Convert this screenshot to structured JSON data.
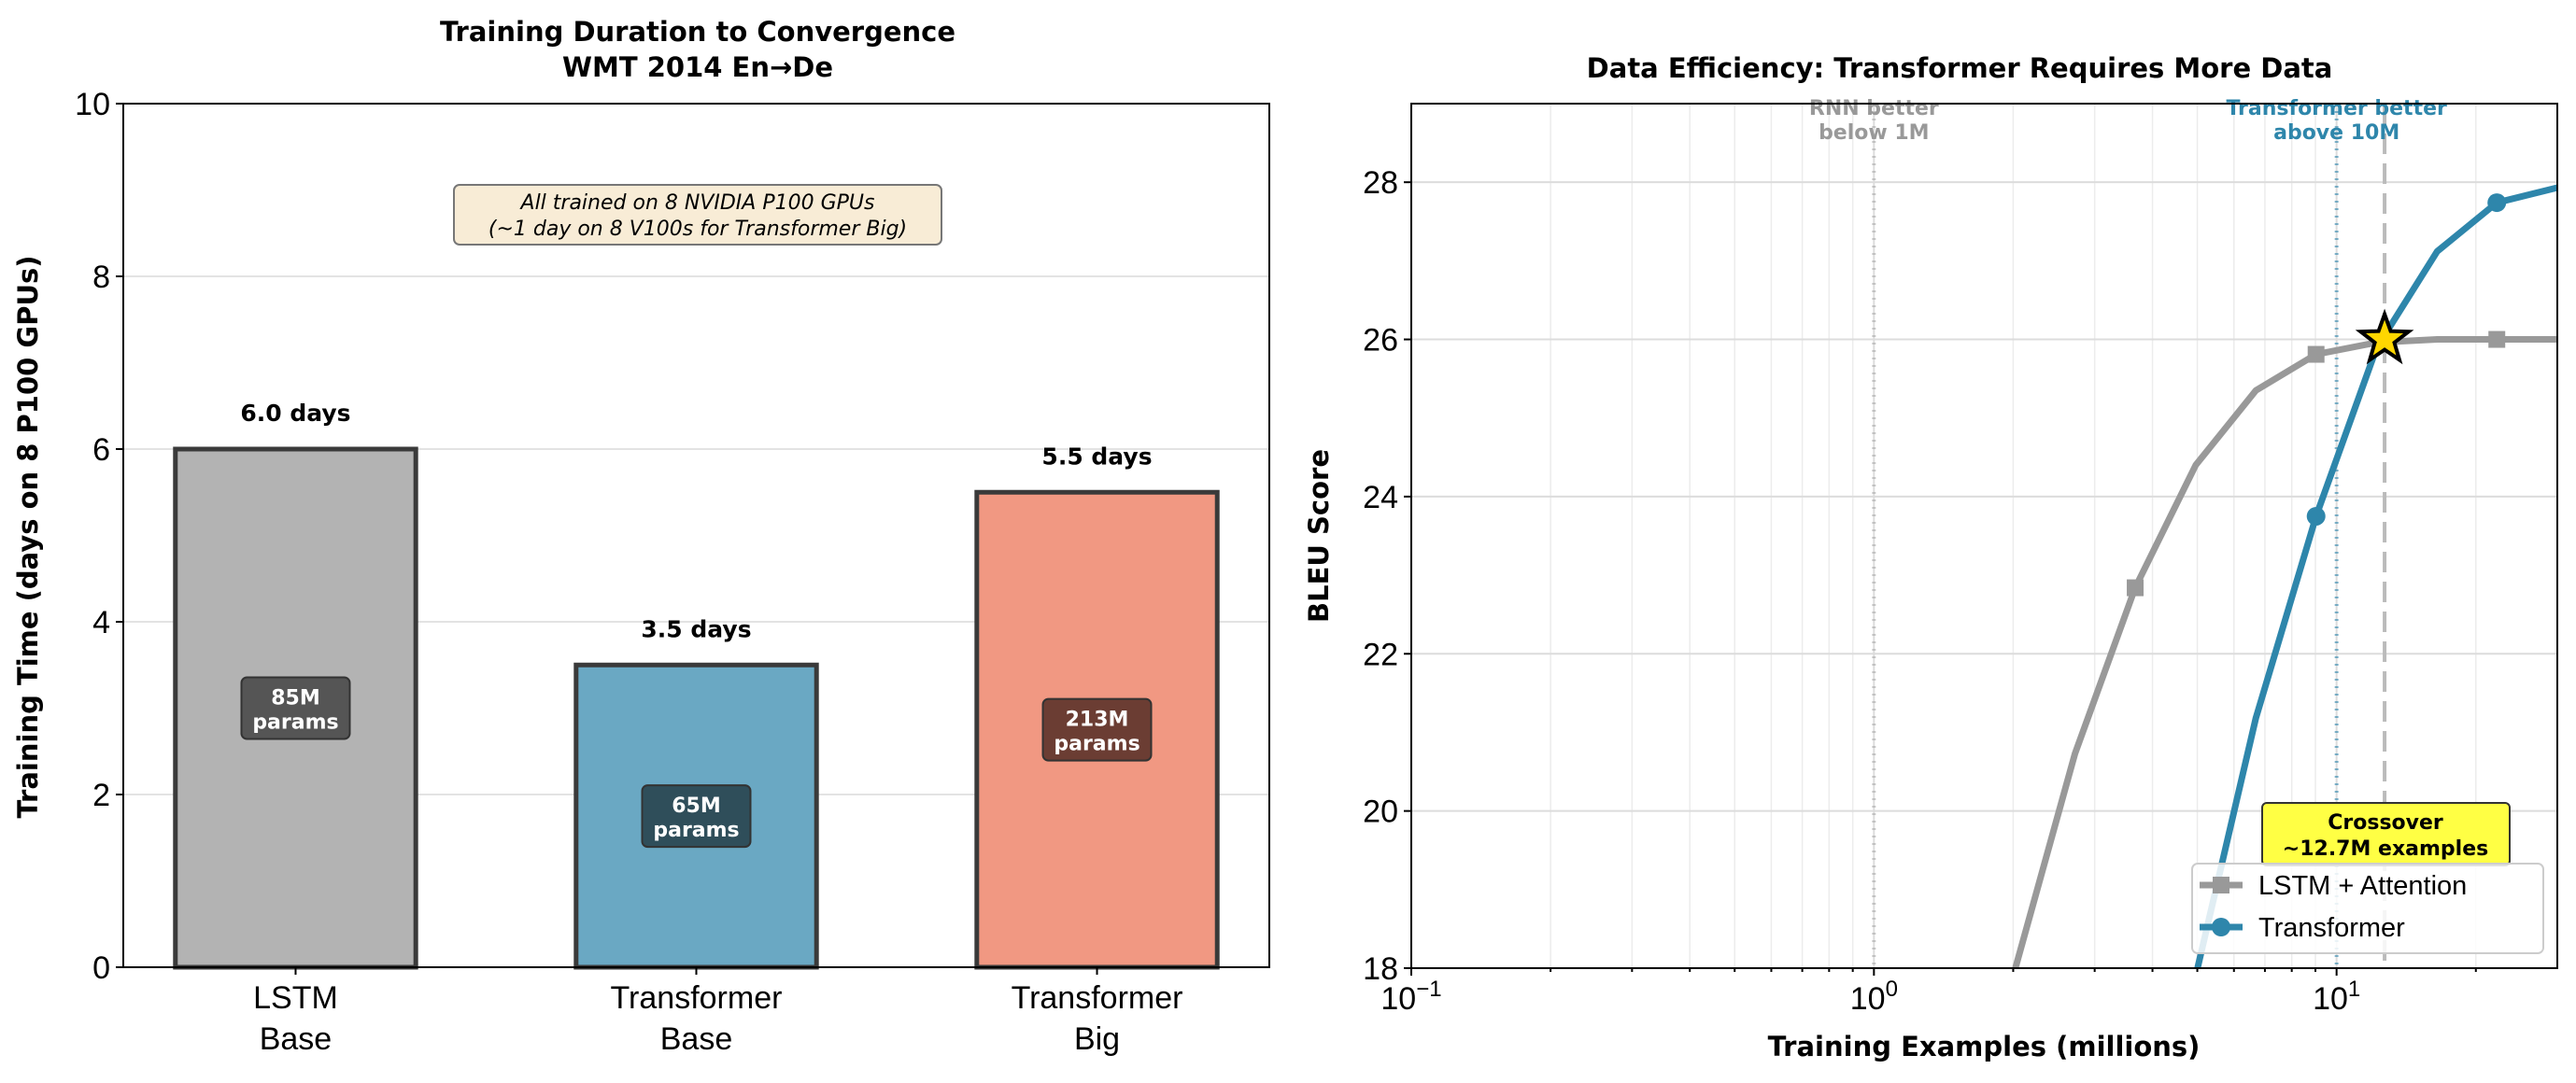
{
  "chart_data": [
    {
      "type": "bar",
      "title": "Training Duration to Convergence",
      "subtitle": "WMT 2014 En→De",
      "xlabel": "",
      "ylabel": "Training Time (days on 8 P100 GPUs)",
      "ylim": [
        0,
        10
      ],
      "yticks": [
        "0",
        "2",
        "4",
        "6",
        "8",
        "10"
      ],
      "grid": "y",
      "categories": [
        [
          "LSTM",
          "Base"
        ],
        [
          "Transformer",
          "Base"
        ],
        [
          "Transformer",
          "Big"
        ]
      ],
      "values": [
        6.0,
        3.5,
        5.5
      ],
      "value_labels": [
        "6.0 days",
        "3.5 days",
        "5.5 days"
      ],
      "param_labels": [
        [
          "85M",
          "params"
        ],
        [
          "65M",
          "params"
        ],
        [
          "213M",
          "params"
        ]
      ],
      "colors": [
        "#b3b3b3",
        "#6aa8c3",
        "#f19882"
      ],
      "param_box_colors": [
        "#555555",
        "#2f4e5a",
        "#6b3d33"
      ],
      "note": [
        "All trained on 8 NVIDIA P100 GPUs",
        "(~1 day on 8 V100s for Transformer Big)"
      ]
    },
    {
      "type": "line",
      "title": "Data Efficiency: Transformer Requires More Data",
      "xlabel": "Training Examples (millions)",
      "ylabel": "BLEU Score",
      "xscale": "log",
      "xlim": [
        0.1,
        30
      ],
      "ylim": [
        18,
        29
      ],
      "xticks": [
        {
          "value": 0.1,
          "base": "10",
          "exp": "−1"
        },
        {
          "value": 1,
          "base": "10",
          "exp": "0"
        },
        {
          "value": 10,
          "base": "10",
          "exp": "1"
        }
      ],
      "yticks": [
        "18",
        "20",
        "22",
        "24",
        "26",
        "28"
      ],
      "grid": "both",
      "legend_position": "lower right",
      "series": [
        {
          "name": "LSTM + Attention",
          "color": "#999999",
          "marker": "square",
          "x": [
            2.0,
            2.72,
            3.67,
            4.96,
            6.69,
            9.03,
            12.2,
            16.5,
            22.2,
            30.0
          ],
          "y": [
            17.9,
            20.73,
            22.84,
            24.4,
            25.35,
            25.81,
            25.96,
            26.0,
            26.0,
            26.0
          ],
          "marker_x": [
            3.67,
            9.03,
            22.2
          ]
        },
        {
          "name": "Transformer",
          "color": "#2e86ab",
          "marker": "circle",
          "x": [
            4.96,
            6.69,
            9.03,
            12.2,
            16.5,
            22.2,
            30.0
          ],
          "y": [
            17.9,
            21.18,
            23.75,
            25.89,
            27.12,
            27.74,
            27.93
          ],
          "marker_x": [
            9.03,
            22.2
          ]
        }
      ],
      "crossover": {
        "x": 12.7,
        "y": 26.0,
        "label": [
          "Crossover",
          "~12.7M examples"
        ]
      },
      "reference_lines": [
        {
          "x": 1,
          "color": "#aaaaaa",
          "label": [
            "RNN better",
            "below 1M"
          ],
          "label_color": "#999999"
        },
        {
          "x": 10,
          "color": "#2e86ab",
          "label": [
            "Transformer better",
            "above 10M"
          ],
          "label_color": "#2e86ab"
        }
      ]
    }
  ]
}
